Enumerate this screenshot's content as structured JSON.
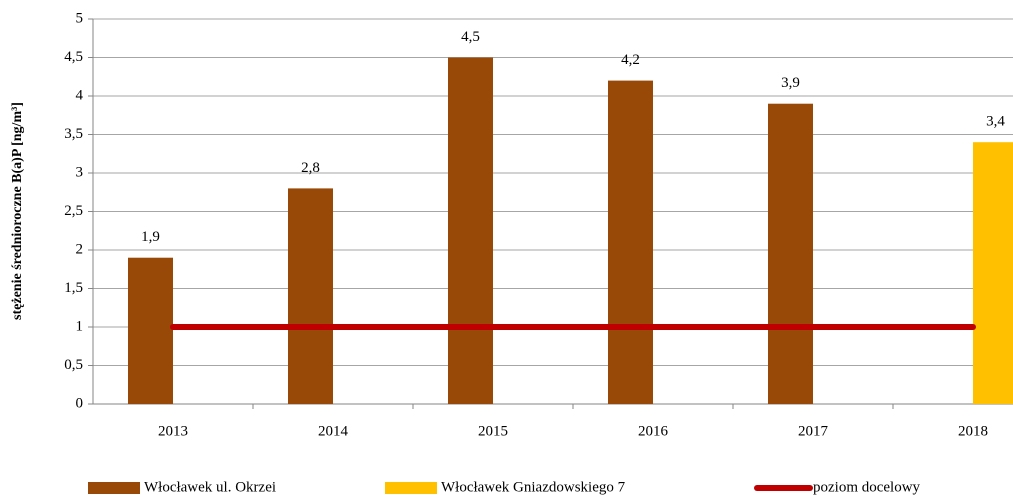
{
  "chart_data": {
    "type": "bar",
    "y_label": "stężenie średnioroczne B(a)P [ng/m³]",
    "categories": [
      "2013",
      "2014",
      "2015",
      "2016",
      "2017",
      "2018"
    ],
    "series": [
      {
        "name": "Włocławek ul. Okrzei",
        "color": "#984807",
        "type": "bar",
        "values": [
          1.9,
          2.8,
          4.5,
          4.2,
          3.9,
          null
        ],
        "value_labels": [
          "1,9",
          "2,8",
          "4,5",
          "4,2",
          "3,9",
          null
        ]
      },
      {
        "name": "Włocławek Gniazdowskiego 7",
        "color": "#ffc000",
        "type": "bar",
        "values": [
          null,
          null,
          null,
          null,
          null,
          3.4
        ],
        "value_labels": [
          null,
          null,
          null,
          null,
          null,
          "3,4"
        ]
      },
      {
        "name": "poziom docelowy",
        "color": "#c00000",
        "type": "line",
        "values": [
          1,
          1,
          1,
          1,
          1,
          1
        ]
      }
    ],
    "ylim": [
      0,
      5
    ],
    "yticks": [
      0,
      {
        "value": 0.5,
        "label": "0,5"
      },
      1,
      {
        "value": 1.5,
        "label": "1,5"
      },
      2,
      {
        "value": 2.5,
        "label": "2,5"
      },
      3,
      {
        "value": 3.5,
        "label": "3,5"
      },
      4,
      {
        "value": 4.5,
        "label": "4,5"
      },
      5
    ],
    "grid": true,
    "legend": "bottom"
  }
}
